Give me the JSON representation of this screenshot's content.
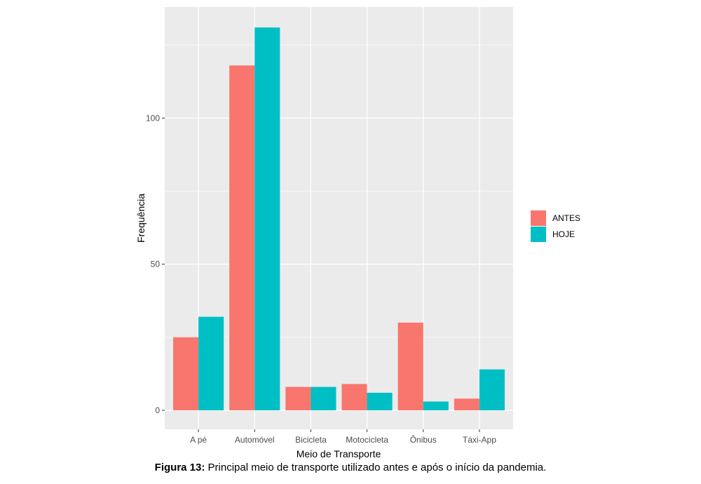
{
  "chart_data": {
    "type": "bar",
    "xlabel": "Meio de Transporte",
    "ylabel": "Frequência",
    "categories": [
      "A pé",
      "Automóvel",
      "Bicicleta",
      "Motocicleta",
      "Ônibus",
      "Táxi-App"
    ],
    "series": [
      {
        "name": "ANTES",
        "color": "#F8766D",
        "values": [
          25,
          118,
          8,
          9,
          30,
          4
        ]
      },
      {
        "name": "HOJE",
        "color": "#00BFC4",
        "values": [
          32,
          131,
          8,
          6,
          3,
          14
        ]
      }
    ],
    "yticks": [
      0,
      50,
      100
    ],
    "ylim": [
      -6.5,
      138
    ],
    "grid": true,
    "panel_background": "#EBEBEB",
    "legend_position": "right"
  },
  "caption": {
    "label": "Figura 13:",
    "text": " Principal meio de transporte utilizado antes e após o início da pandemia."
  }
}
